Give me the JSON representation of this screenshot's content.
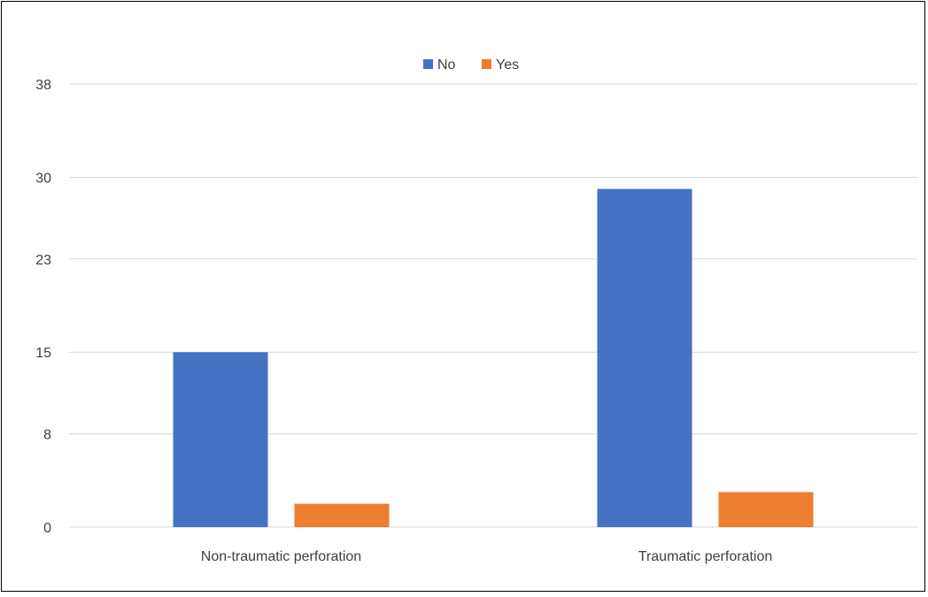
{
  "chart_data": {
    "type": "bar",
    "title": "",
    "xlabel": "",
    "ylabel": "",
    "categories": [
      "Non-traumatic perforation",
      "Traumatic perforation"
    ],
    "series": [
      {
        "name": "No",
        "values": [
          15,
          29
        ],
        "color": "#4472C4"
      },
      {
        "name": "Yes",
        "values": [
          2,
          3
        ],
        "color": "#ED7D31"
      }
    ],
    "y_ticks": [
      0,
      8,
      15,
      23,
      30,
      38
    ],
    "ylim": [
      0,
      38
    ],
    "grid": true,
    "legend_position": "top-center"
  }
}
